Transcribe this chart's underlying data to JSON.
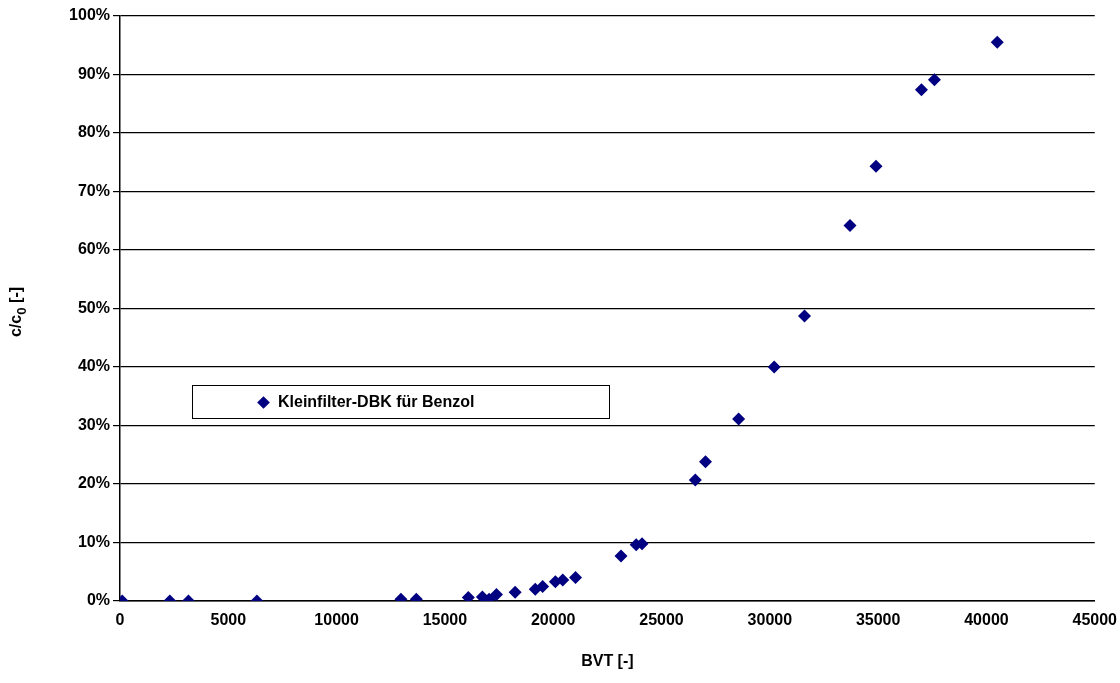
{
  "chart_data": {
    "type": "scatter",
    "xlabel": "BVT [-]",
    "ylabel": "c/c$_{0}$ [-]",
    "xlim": [
      0,
      45000
    ],
    "xticks": [
      0,
      5000,
      10000,
      15000,
      20000,
      25000,
      30000,
      35000,
      40000,
      45000
    ],
    "ylim": [
      0,
      100
    ],
    "yticks": [
      {
        "value": 0,
        "label": "0%"
      },
      {
        "value": 10,
        "label": "10%"
      },
      {
        "value": 20,
        "label": "20%"
      },
      {
        "value": 30,
        "label": "30%"
      },
      {
        "value": 40,
        "label": "40%"
      },
      {
        "value": 50,
        "label": "50%"
      },
      {
        "value": 60,
        "label": "60%"
      },
      {
        "value": 70,
        "label": "70%"
      },
      {
        "value": 80,
        "label": "80%"
      },
      {
        "value": 90,
        "label": "90%"
      },
      {
        "value": 100,
        "label": "100%"
      }
    ],
    "grid": "y",
    "legend": "left",
    "marker": "diamond",
    "series": [
      {
        "name": "Kleinfilter-DBK für Benzol",
        "color": "#000080",
        "x": [
          100,
          2300,
          3160,
          6320,
          12970,
          13680,
          16080,
          16730,
          17040,
          17380,
          18240,
          19170,
          19510,
          20100,
          20440,
          21030,
          23130,
          23830,
          24100,
          26560,
          27030,
          28560,
          30200,
          31600,
          33700,
          34900,
          37000,
          37600,
          40500
        ],
        "values": [
          0,
          0,
          0,
          0,
          0.3,
          0.3,
          0.6,
          0.7,
          0.3,
          1.1,
          1.5,
          2.0,
          2.5,
          3.3,
          3.6,
          4.0,
          7.7,
          9.6,
          9.8,
          20.7,
          23.8,
          31.1,
          40.0,
          48.7,
          64.2,
          74.3,
          87.4,
          89.1,
          95.5
        ]
      }
    ]
  }
}
